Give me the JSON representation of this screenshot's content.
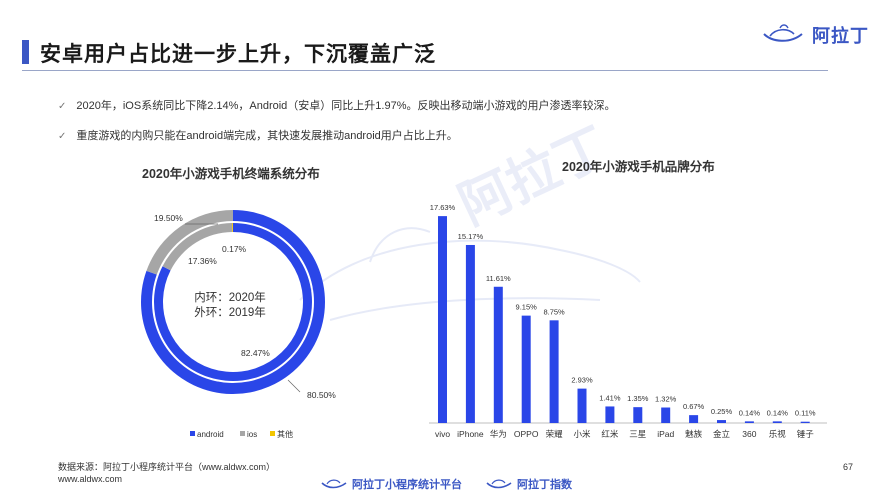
{
  "header": {
    "title": "安卓用户占比进一步上升，下沉覆盖广泛",
    "logo_text": "阿拉丁"
  },
  "bullets": [
    "2020年，iOS系统同比下降2.14%，Android（安卓）同比上升1.97%。反映出移动端小游戏的用户渗透率较深。",
    "重度游戏的内购只能在android端完成，其快速发展推动android用户占比上升。"
  ],
  "colors": {
    "android": "#2a46e8",
    "ios": "#a6a6a6",
    "other": "#f2c500",
    "brand": "#3b57c4"
  },
  "chart_data": [
    {
      "type": "pie",
      "title": "2020年小游戏手机终端系统分布",
      "center_label": [
        "内环：2020年",
        "外环：2019年"
      ],
      "legend": [
        "android",
        "ios",
        "其他"
      ],
      "legend_position": "bottom",
      "series": [
        {
          "ring": "inner",
          "year": "2020年",
          "values": [
            82.47,
            17.36,
            0.17
          ],
          "labels": [
            "82.47%",
            "17.36%",
            "0.17%"
          ]
        },
        {
          "ring": "outer",
          "year": "2019年",
          "values": [
            80.5,
            19.5,
            0.0
          ],
          "labels": [
            "80.50%",
            "19.50%",
            ""
          ]
        }
      ],
      "categories": [
        "android",
        "ios",
        "其他"
      ]
    },
    {
      "type": "bar",
      "title": "2020年小游戏手机品牌分布",
      "categories": [
        "vivo",
        "iPhone",
        "华为",
        "OPPO",
        "荣耀",
        "小米",
        "红米",
        "三星",
        "iPad",
        "魅族",
        "金立",
        "360",
        "乐视",
        "锤子"
      ],
      "values": [
        17.63,
        15.17,
        11.61,
        9.15,
        8.75,
        2.93,
        1.41,
        1.35,
        1.32,
        0.67,
        0.25,
        0.14,
        0.14,
        0.11
      ],
      "labels": [
        "17.63%",
        "15.17%",
        "11.61%",
        "9.15%",
        "8.75%",
        "2.93%",
        "1.41%",
        "1.35%",
        "1.32%",
        "0.67%",
        "0.25%",
        "0.14%",
        "0.14%",
        "0.11%"
      ],
      "ylim": [
        0,
        20
      ],
      "grid": false
    }
  ],
  "footer": {
    "source_line1": "数据来源：阿拉丁小程序统计平台（www.aldwx.com）",
    "source_line2": "www.aldwx.com",
    "page_number": "67",
    "brand1": "阿拉丁小程序统计平台",
    "brand2": "阿拉丁指数"
  }
}
